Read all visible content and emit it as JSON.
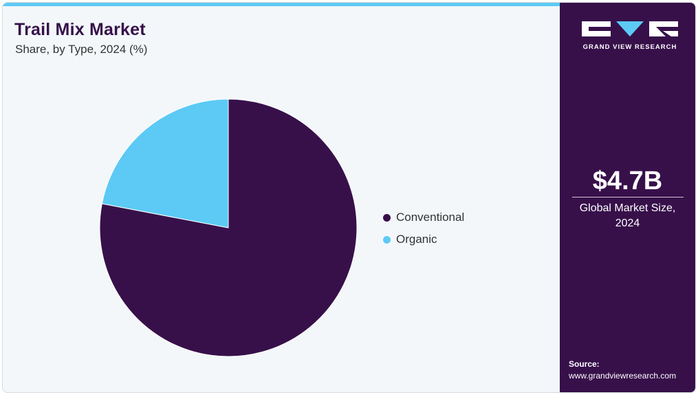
{
  "header": {
    "title": "Trail Mix Market",
    "subtitle": "Share, by Type, 2024 (%)"
  },
  "chart_data": {
    "type": "pie",
    "title": "Trail Mix Market",
    "subtitle": "Share, by Type, 2024 (%)",
    "categories": [
      "Conventional",
      "Organic"
    ],
    "values": [
      78,
      22
    ],
    "colors": [
      "#37104a",
      "#5ccaf5"
    ],
    "start_angle_deg": 0,
    "direction": "clockwise",
    "legend_placement": "right"
  },
  "legend": {
    "items": [
      {
        "label": "Conventional",
        "color": "#37104a"
      },
      {
        "label": "Organic",
        "color": "#5ccaf5"
      }
    ]
  },
  "sidebar": {
    "brand": "GRAND VIEW RESEARCH",
    "market_value": "$4.7B",
    "market_label_line1": "Global Market Size,",
    "market_label_line2": "2024",
    "source_label": "Source:",
    "source_url": "www.grandviewresearch.com"
  },
  "colors": {
    "accent": "#5ccaf5",
    "brand": "#37104a",
    "background": "#f3f7fa"
  }
}
